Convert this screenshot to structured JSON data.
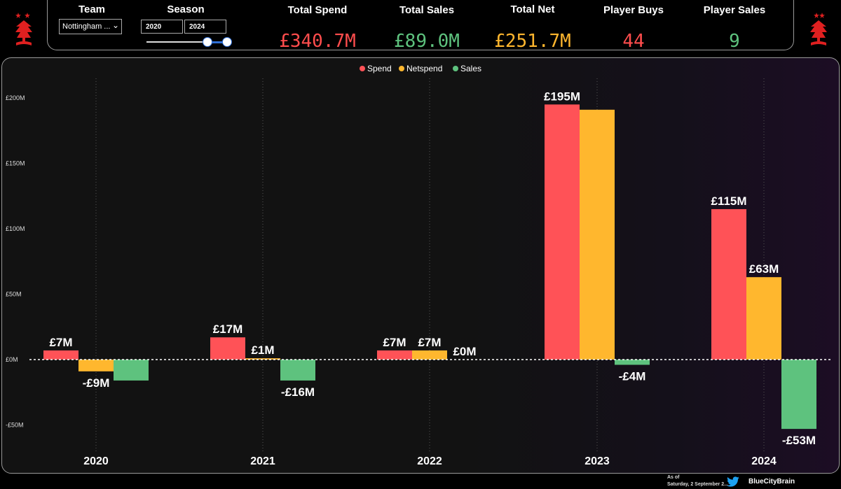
{
  "header": {
    "team_label": "Team",
    "team_value": "Nottingham ...",
    "season_label": "Season",
    "season_start": "2020",
    "season_end": "2024",
    "kpis": [
      {
        "label": "Total Spend",
        "value": "£340.7M",
        "color": "#ff4d4d"
      },
      {
        "label": "Total Sales",
        "value": "£89.0M",
        "color": "#5ec27e"
      },
      {
        "label": "Total Net",
        "value": "£251.7M",
        "color": "#ffb62e"
      },
      {
        "label": "Player Buys",
        "value": "44",
        "color": "#ff4d4d"
      },
      {
        "label": "Player Sales",
        "value": "9",
        "color": "#5ec27e"
      }
    ]
  },
  "chart_data": {
    "type": "bar",
    "categories": [
      "2020",
      "2021",
      "2022",
      "2023",
      "2024"
    ],
    "series": [
      {
        "name": "Spend",
        "color": "#ff5257",
        "values": [
          7,
          17,
          7,
          195,
          115
        ],
        "labels": [
          "£7M",
          "£17M",
          "£7M",
          "£195M",
          "£115M"
        ]
      },
      {
        "name": "Netspend",
        "color": "#ffb72e",
        "values": [
          -9,
          1,
          7,
          191,
          63
        ],
        "labels": [
          "-£9M",
          "£1M",
          "£7M",
          "",
          "£63M"
        ]
      },
      {
        "name": "Sales",
        "color": "#5ec27e",
        "values": [
          -16,
          -16,
          0,
          -4,
          -53
        ],
        "labels": [
          "",
          "-£16M",
          "£0M",
          "-£4M",
          "-£53M"
        ]
      }
    ],
    "ylim": [
      -50,
      200
    ],
    "yticks": [
      200,
      150,
      100,
      50,
      0,
      -50
    ],
    "ytick_labels": [
      "£200M",
      "£150M",
      "£100M",
      "£50M",
      "£0M",
      "-£50M"
    ],
    "legend": "top-center",
    "grid": "vertical dotted"
  },
  "footer": {
    "as_of": "As of",
    "date": "Saturday, 2 September 2...",
    "brand": "BlueCityBrain"
  }
}
